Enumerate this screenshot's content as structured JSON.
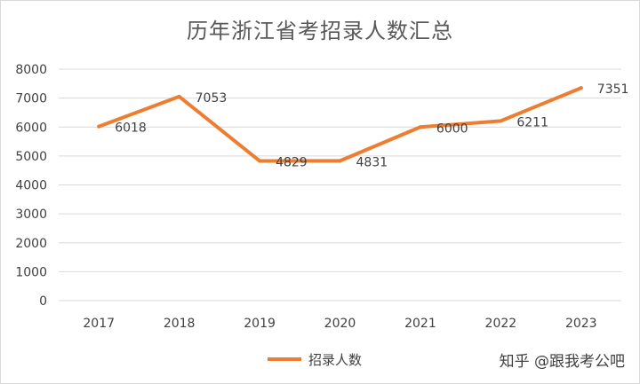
{
  "chart_data": {
    "type": "line",
    "title": "历年浙江省考招录人数汇总",
    "categories": [
      "2017",
      "2018",
      "2019",
      "2020",
      "2021",
      "2022",
      "2023"
    ],
    "series": [
      {
        "name": "招录人数",
        "values": [
          6018,
          7053,
          4829,
          4831,
          6000,
          6211,
          7351
        ],
        "color": "#ed7d31"
      }
    ],
    "ylim": [
      0,
      8000
    ],
    "yticks": [
      0,
      1000,
      2000,
      3000,
      4000,
      5000,
      6000,
      7000,
      8000
    ],
    "grid": true,
    "legend_position": "bottom",
    "xlabel": "",
    "ylabel": ""
  },
  "watermark": "知乎 @跟我考公吧"
}
